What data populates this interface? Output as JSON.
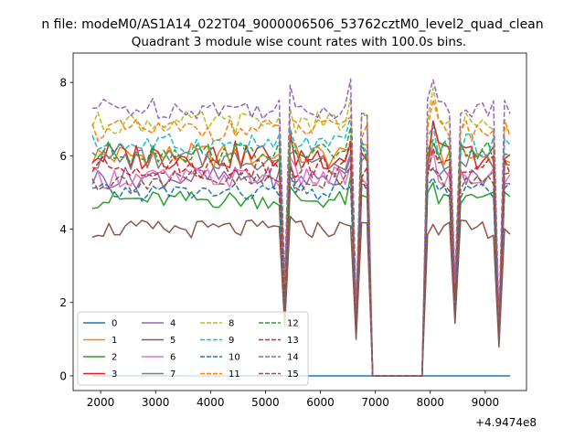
{
  "figure_title": "n file: modeM0/AS1A14_022T04_9000006506_53762cztM0_level2_quad_clean",
  "chart_data": {
    "type": "line",
    "title": "Quadrant 3 module wise count rates with 100.0s bins.",
    "xlabel": "",
    "ylabel": "",
    "offset_label": "+4.9474e8",
    "xlim": [
      1500,
      9750
    ],
    "ylim": [
      -0.4,
      8.8
    ],
    "x_ticks": [
      2000,
      3000,
      4000,
      5000,
      6000,
      7000,
      8000,
      9000
    ],
    "x_tick_labels": [
      "2000",
      "3000",
      "4000",
      "5000",
      "6000",
      "7000",
      "8000",
      "9000"
    ],
    "y_ticks": [
      0,
      2,
      4,
      6,
      8
    ],
    "y_tick_labels": [
      "0",
      "2",
      "4",
      "6",
      "8"
    ],
    "grid": false,
    "legend_position": "lower-left",
    "x_start": 1850,
    "x_end": 9450,
    "series": [
      {
        "name": "0",
        "color": "#1f77b4",
        "dash": "solid",
        "base": 0.0,
        "amp": 0.0
      },
      {
        "name": "1",
        "color": "#ff7f0e",
        "dash": "solid",
        "base": 6.0,
        "amp": 0.35
      },
      {
        "name": "2",
        "color": "#2ca02c",
        "dash": "solid",
        "base": 4.8,
        "amp": 0.25
      },
      {
        "name": "3",
        "color": "#d62728",
        "dash": "solid",
        "base": 6.0,
        "amp": 0.4
      },
      {
        "name": "4",
        "color": "#9467bd",
        "dash": "solid",
        "base": 5.4,
        "amp": 0.3
      },
      {
        "name": "5",
        "color": "#8c564b",
        "dash": "solid",
        "base": 4.0,
        "amp": 0.25
      },
      {
        "name": "6",
        "color": "#e377c2",
        "dash": "solid",
        "base": 5.4,
        "amp": 0.3
      },
      {
        "name": "7",
        "color": "#7f7f7f",
        "dash": "solid",
        "base": 5.9,
        "amp": 0.3
      },
      {
        "name": "8",
        "color": "#bcbd22",
        "dash": "dashed",
        "base": 6.9,
        "amp": 0.3
      },
      {
        "name": "9",
        "color": "#17becf",
        "dash": "dashed",
        "base": 6.3,
        "amp": 0.3
      },
      {
        "name": "10",
        "color": "#1f77b4",
        "dash": "dashed",
        "base": 5.0,
        "amp": 0.25
      },
      {
        "name": "11",
        "color": "#ff7f0e",
        "dash": "dashed",
        "base": 6.7,
        "amp": 0.3
      },
      {
        "name": "12",
        "color": "#2ca02c",
        "dash": "dashed",
        "base": 6.1,
        "amp": 0.3
      },
      {
        "name": "13",
        "color": "#d62728",
        "dash": "dashed",
        "base": 5.7,
        "amp": 0.3
      },
      {
        "name": "14",
        "color": "#9467bd",
        "dash": "dashed",
        "base": 7.3,
        "amp": 0.3
      },
      {
        "name": "15",
        "color": "#8c564b",
        "dash": "dashed",
        "base": 5.3,
        "amp": 0.3
      }
    ],
    "features": [
      {
        "x": 5330,
        "ratio": 0.35
      },
      {
        "x": 5450,
        "ratio": 1.05
      },
      {
        "x": 6540,
        "ratio": 1.08
      },
      {
        "x": 6620,
        "ratio": 0.25
      },
      {
        "x": 6700,
        "ratio": 1.05
      },
      {
        "x": 8050,
        "ratio": 1.1
      },
      {
        "x": 8450,
        "ratio": 0.35
      },
      {
        "x": 8600,
        "ratio": 0.9
      },
      {
        "x": 9050,
        "ratio": 1.0
      },
      {
        "x": 9250,
        "ratio": 0.2
      }
    ],
    "gaps": [
      {
        "from": 6950,
        "to": 7850
      }
    ]
  }
}
